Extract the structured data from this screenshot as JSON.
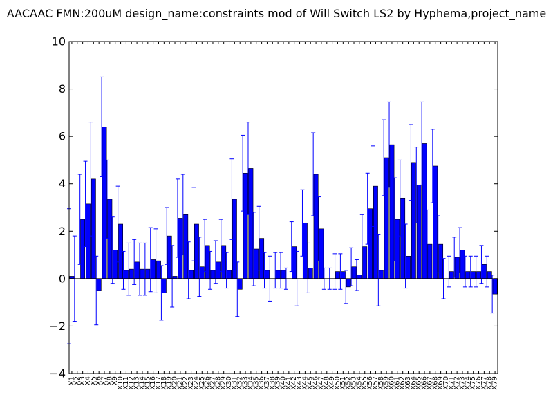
{
  "chart_data": {
    "type": "bar",
    "title": "AACAAC  FMN:200uM  design_name:constraints mod of Will Switch LS2 by Hyphema,project_name",
    "xlabel": "",
    "ylabel": "",
    "ylim": [
      -4,
      10
    ],
    "yticks": [
      -4,
      -2,
      0,
      2,
      4,
      6,
      8,
      10
    ],
    "grid": false,
    "bar_color": "#0000ff",
    "edge_color": "#000000",
    "errorbar_color": "#0000ff",
    "categories": [
      "X1",
      "X2",
      "X3",
      "X4",
      "X5",
      "X6",
      "X7",
      "X8",
      "X9",
      "X10",
      "X11",
      "X12",
      "X13",
      "X14",
      "X15",
      "X16",
      "X17",
      "X18",
      "X19",
      "X20",
      "X21",
      "X22",
      "X23",
      "X24",
      "X25",
      "X26",
      "X27",
      "X28",
      "X29",
      "X30",
      "X31",
      "X32",
      "X33",
      "X34",
      "X35",
      "X36",
      "X37",
      "X38",
      "X39",
      "X40",
      "X41",
      "X42",
      "X43",
      "X44",
      "X45",
      "X46",
      "X47",
      "X48",
      "X49",
      "X50",
      "X51",
      "X52",
      "X53",
      "X54",
      "X55",
      "X56",
      "X57",
      "X58",
      "X59",
      "X60",
      "X61",
      "X62",
      "X63",
      "X64",
      "X65",
      "X66",
      "X67",
      "X68",
      "X69",
      "X70",
      "X71",
      "X72",
      "X73",
      "X74",
      "X75",
      "X76",
      "X77",
      "X78",
      "X79"
    ],
    "values": [
      0.1,
      0,
      2.5,
      3.15,
      4.2,
      -0.5,
      6.4,
      3.35,
      1.2,
      2.3,
      0.35,
      0.4,
      0.7,
      0.4,
      0.4,
      0.8,
      0.75,
      -0.6,
      1.8,
      0.1,
      2.55,
      2.7,
      0.35,
      2.3,
      0.5,
      1.4,
      0.35,
      0.7,
      1.4,
      0.35,
      3.35,
      -0.45,
      4.45,
      4.65,
      1.25,
      1.7,
      0.35,
      0,
      0.35,
      0.35,
      0,
      1.35,
      0,
      2.35,
      0.45,
      4.4,
      2.1,
      0,
      0,
      0.3,
      0.3,
      -0.35,
      0.5,
      0.15,
      1.35,
      2.95,
      3.9,
      0.35,
      5.1,
      5.65,
      2.5,
      3.4,
      0.95,
      4.9,
      3.95,
      5.7,
      1.45,
      4.75,
      1.45,
      0,
      0.3,
      0.9,
      1.2,
      0.3,
      0.3,
      0.3,
      0.6,
      0.3,
      -0.65
    ],
    "errors": [
      2.85,
      1.8,
      1.9,
      1.8,
      2.4,
      1.45,
      2.1,
      1.65,
      1.4,
      1.6,
      0.8,
      1.1,
      0.95,
      1.1,
      1.1,
      1.35,
      1.35,
      1.15,
      1.2,
      1.3,
      1.65,
      1.7,
      1.2,
      1.55,
      1.25,
      1.1,
      0.8,
      0.9,
      1.1,
      0.75,
      1.7,
      1.15,
      1.6,
      1.95,
      1.55,
      1.35,
      0.75,
      0.95,
      0.75,
      0.75,
      0.45,
      1.05,
      1.15,
      1.4,
      1.05,
      1.75,
      1.35,
      0.45,
      0.45,
      0.75,
      0.75,
      0.7,
      0.8,
      0.65,
      1.35,
      1.5,
      1.7,
      1.5,
      1.6,
      1.8,
      1.75,
      1.6,
      1.35,
      1.6,
      1.6,
      1.75,
      1.45,
      1.55,
      1.2,
      0.85,
      0.65,
      0.85,
      0.95,
      0.65,
      0.65,
      0.65,
      0.8,
      0.65,
      0.8
    ]
  }
}
